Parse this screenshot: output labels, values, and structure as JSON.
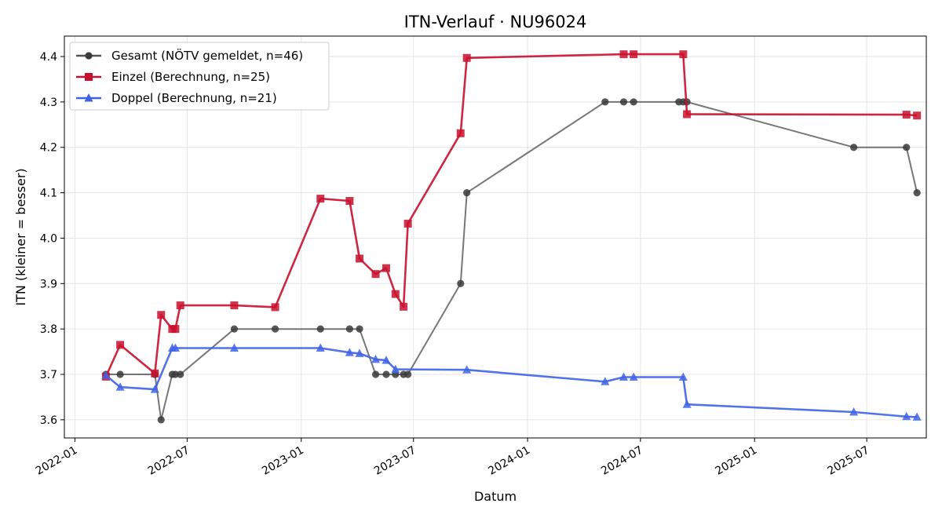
{
  "chart_data": {
    "type": "line",
    "title": "ITN-Verlauf · NU96024",
    "xlabel": "Datum",
    "ylabel": "ITN  (kleiner = besser)",
    "xlim": [
      "2021-12-15",
      "2025-10-05"
    ],
    "ylim": [
      3.56,
      4.445
    ],
    "x_ticks": [
      "2022-01-01",
      "2022-07-01",
      "2023-01-01",
      "2023-07-01",
      "2024-01-01",
      "2024-07-01",
      "2025-01-01",
      "2025-07-01"
    ],
    "x_tick_labels": [
      "2022-01",
      "2022-07",
      "2023-01",
      "2023-07",
      "2024-01",
      "2024-07",
      "2025-01",
      "2025-07"
    ],
    "y_ticks": [
      3.6,
      3.7,
      3.8,
      3.9,
      4.0,
      4.1,
      4.2,
      4.3,
      4.4
    ],
    "y_tick_labels": [
      "3.6",
      "3.7",
      "3.8",
      "3.9",
      "4.0",
      "4.1",
      "4.2",
      "4.3",
      "4.4"
    ],
    "grid": true,
    "legend_position": "top-left",
    "series": [
      {
        "name": "Gesamt (NÖTV gemeldet, n=46)",
        "color": "#555555",
        "marker": "circle",
        "x": [
          "2022-02-20",
          "2022-03-15",
          "2022-05-10",
          "2022-05-20",
          "2022-06-07",
          "2022-06-12",
          "2022-06-20",
          "2022-09-15",
          "2022-11-20",
          "2023-02-01",
          "2023-03-20",
          "2023-04-05",
          "2023-05-01",
          "2023-05-18",
          "2023-06-02",
          "2023-06-15",
          "2023-06-22",
          "2023-09-15",
          "2023-09-25",
          "2024-05-05",
          "2024-06-04",
          "2024-06-20",
          "2024-09-01",
          "2024-09-08",
          "2024-09-14",
          "2025-06-10",
          "2025-09-03",
          "2025-09-20"
        ],
        "y": [
          3.7,
          3.7,
          3.7,
          3.6,
          3.7,
          3.7,
          3.7,
          3.8,
          3.8,
          3.8,
          3.8,
          3.8,
          3.7,
          3.7,
          3.7,
          3.7,
          3.7,
          3.9,
          4.1,
          4.3,
          4.3,
          4.3,
          4.3,
          4.3,
          4.3,
          4.2,
          4.2,
          4.1
        ]
      },
      {
        "name": "Einzel (Berechnung, n=25)",
        "color": "#c8102e",
        "marker": "square",
        "x": [
          "2022-02-20",
          "2022-03-15",
          "2022-05-10",
          "2022-05-20",
          "2022-06-07",
          "2022-06-12",
          "2022-06-20",
          "2022-09-15",
          "2022-11-20",
          "2023-02-01",
          "2023-03-20",
          "2023-04-05",
          "2023-05-01",
          "2023-05-18",
          "2023-06-02",
          "2023-06-15",
          "2023-06-22",
          "2023-09-15",
          "2023-09-25",
          "2024-06-04",
          "2024-06-20",
          "2024-09-08",
          "2024-09-14",
          "2025-09-03",
          "2025-09-20"
        ],
        "y": [
          3.695,
          3.765,
          3.702,
          3.831,
          3.8,
          3.8,
          3.852,
          3.852,
          3.848,
          4.087,
          4.082,
          3.955,
          3.921,
          3.934,
          3.877,
          3.849,
          4.032,
          4.231,
          4.397,
          4.405,
          4.405,
          4.405,
          4.273,
          4.272,
          4.27
        ]
      },
      {
        "name": "Doppel (Berechnung, n=21)",
        "color": "#3f63e8",
        "marker": "triangle",
        "x": [
          "2022-02-20",
          "2022-03-15",
          "2022-05-10",
          "2022-06-07",
          "2022-06-12",
          "2022-09-15",
          "2023-02-01",
          "2023-03-20",
          "2023-04-05",
          "2023-05-01",
          "2023-05-18",
          "2023-06-02",
          "2023-09-25",
          "2024-05-05",
          "2024-06-04",
          "2024-06-20",
          "2024-09-08",
          "2024-09-14",
          "2025-06-10",
          "2025-09-03",
          "2025-09-20"
        ],
        "y": [
          3.698,
          3.672,
          3.667,
          3.758,
          3.758,
          3.758,
          3.758,
          3.748,
          3.746,
          3.733,
          3.731,
          3.711,
          3.71,
          3.684,
          3.694,
          3.694,
          3.694,
          3.634,
          3.617,
          3.607,
          3.606
        ]
      }
    ]
  }
}
